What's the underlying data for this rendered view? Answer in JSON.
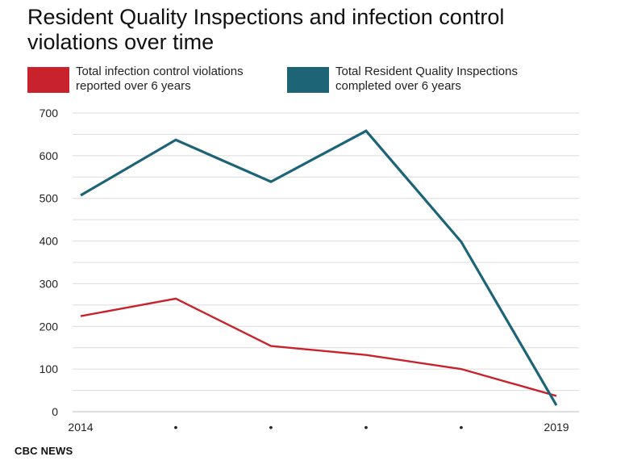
{
  "chart_data": {
    "type": "line",
    "title": "Resident Quality Inspections and infection control violations over time",
    "x": [
      "2014",
      "•",
      "•",
      "•",
      "•",
      "2019"
    ],
    "ylim": [
      0,
      700
    ],
    "yticks": [
      0,
      100,
      200,
      300,
      400,
      500,
      600,
      700
    ],
    "grid": true,
    "legend_position": "top",
    "series": [
      {
        "name": "Total infection control violations reported over 6 years",
        "color": "#c8232c",
        "values": [
          224,
          265,
          154,
          133,
          100,
          37
        ]
      },
      {
        "name": "Total Resident Quality Inspections completed over 6 years",
        "color": "#1d6477",
        "values": [
          507,
          637,
          539,
          658,
          398,
          15
        ]
      }
    ]
  },
  "footer": {
    "source": "CBC NEWS"
  }
}
